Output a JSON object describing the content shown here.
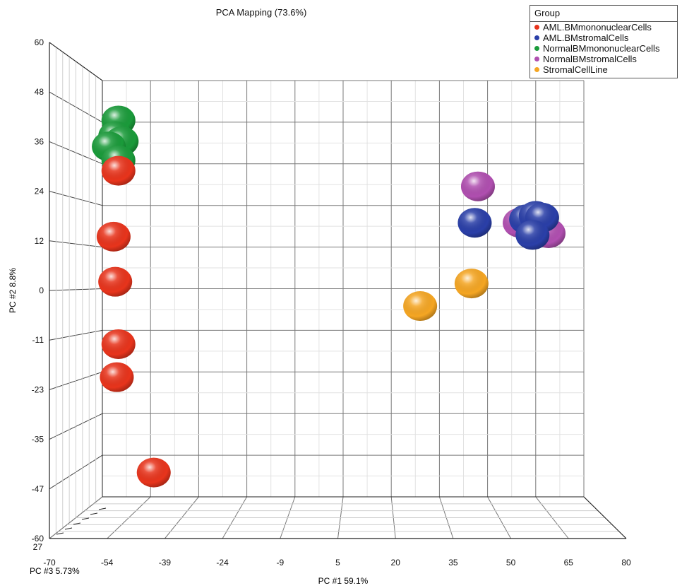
{
  "chart_data": {
    "type": "scatter",
    "title": "PCA Mapping (73.6%)",
    "xlabel": "PC #1 59.1%",
    "ylabel": "PC #2  8.8%",
    "zlabel": "PC #3 5.73%",
    "xlim": [
      -70,
      80
    ],
    "ylim": [
      -60,
      60
    ],
    "x_ticks": [
      "-70",
      "-54",
      "-39",
      "-24",
      "-9",
      "5",
      "20",
      "35",
      "50",
      "65",
      "80"
    ],
    "y_ticks": [
      "60",
      "48",
      "36",
      "24",
      "12",
      "0",
      "-11",
      "-23",
      "-35",
      "-47",
      "-60"
    ],
    "z_tick_start": "27",
    "legend": {
      "title": "Group",
      "placement": "top-right",
      "items": [
        {
          "label": "AML.BMmononuclearCells",
          "color": "#e8341c"
        },
        {
          "label": "AML.BMstromalCells",
          "color": "#2a3fa8"
        },
        {
          "label": "NormalBMmononuclearCells",
          "color": "#1a9b3a"
        },
        {
          "label": "NormalBMstromalCells",
          "color": "#b04fb0"
        },
        {
          "label": "StromalCellLine",
          "color": "#f5a623"
        }
      ]
    },
    "series": [
      {
        "name": "NormalBMmononuclearCells",
        "color": "#1a9b3a",
        "points": [
          [
            -65,
            48.5
          ],
          [
            -66,
            44
          ],
          [
            -64,
            42.5
          ],
          [
            -68,
            41
          ],
          [
            -65,
            37
          ]
        ]
      },
      {
        "name": "AML.BMmononuclearCells",
        "color": "#e8341c",
        "points": [
          [
            -65,
            34
          ],
          [
            -66.5,
            15
          ],
          [
            -66,
            2
          ],
          [
            -65,
            -16
          ],
          [
            -65.5,
            -25.5
          ],
          [
            -54,
            -53
          ]
        ]
      },
      {
        "name": "NormalBMstromalCells",
        "color": "#b04fb0",
        "points": [
          [
            47,
            29.5
          ],
          [
            60,
            19
          ],
          [
            69,
            16
          ]
        ]
      },
      {
        "name": "AML.BMstromalCells",
        "color": "#2a3fa8",
        "points": [
          [
            46,
            19
          ],
          [
            62,
            20
          ],
          [
            65,
            21
          ],
          [
            67,
            20.5
          ],
          [
            64,
            15.5
          ]
        ]
      },
      {
        "name": "StromalCellLine",
        "color": "#f5a623",
        "points": [
          [
            29,
            -5
          ],
          [
            45,
            1.5
          ]
        ]
      }
    ]
  }
}
